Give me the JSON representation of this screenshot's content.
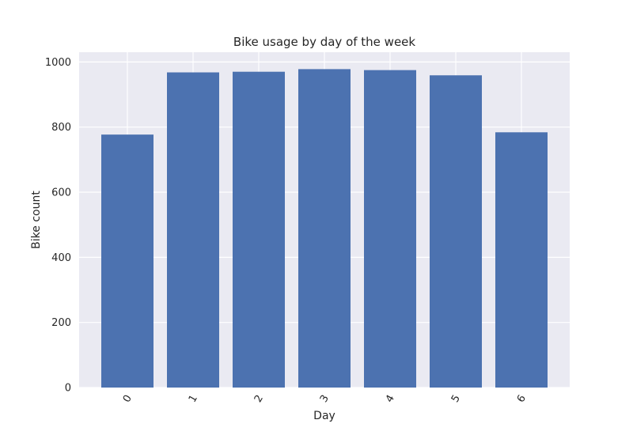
{
  "chart_data": {
    "type": "bar",
    "title": "Bike usage by day of the week",
    "xlabel": "Day",
    "ylabel": "Bike count",
    "categories": [
      "0",
      "1",
      "2",
      "3",
      "4",
      "5",
      "6"
    ],
    "values": [
      777,
      968,
      970,
      978,
      975,
      959,
      784
    ],
    "ylim": [
      0,
      1030
    ],
    "yticks": [
      0,
      200,
      400,
      600,
      800,
      1000
    ],
    "ytick_labels": [
      "0",
      "200",
      "400",
      "600",
      "800",
      "1000"
    ],
    "xtick_rotation_deg": 60,
    "grid": true,
    "legend": "none",
    "colors": {
      "bar": "#4c72b0",
      "plot_background": "#eaeaf2",
      "grid": "#ffffff",
      "text": "#262626"
    }
  }
}
